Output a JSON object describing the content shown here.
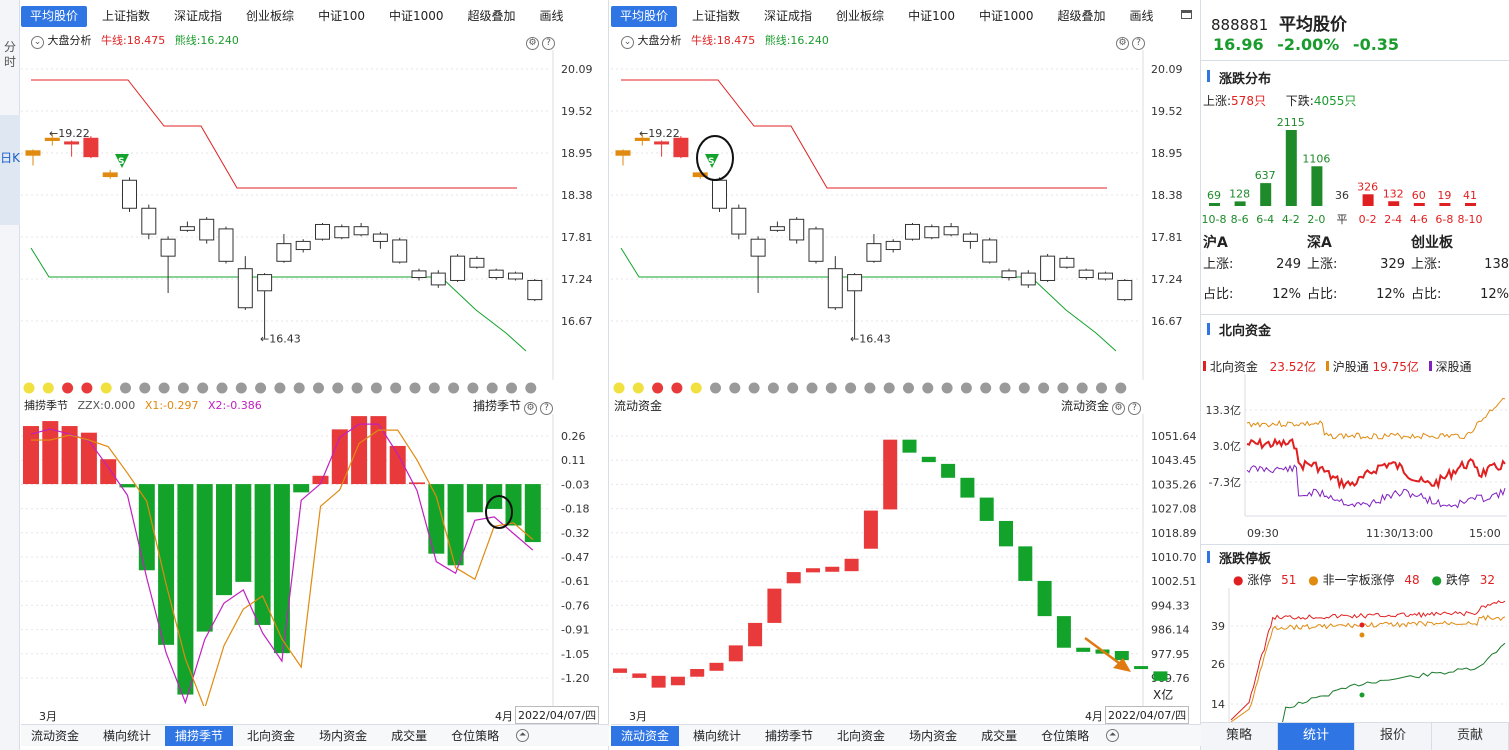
{
  "left_tabs": {
    "fenshi": "分时",
    "rik": "日K"
  },
  "panels": [
    {
      "tabs": [
        "平均股价",
        "上证指数",
        "深证成指",
        "创业板综",
        "中证100",
        "中证1000",
        "超级叠加",
        "画线"
      ],
      "active_tab": 0,
      "analysis": {
        "label": "大盘分析",
        "bull": "牛线:18.475",
        "bear": "熊线:16.240"
      },
      "price_axis": [
        "20.09",
        "19.52",
        "18.95",
        "18.38",
        "17.81",
        "17.24",
        "16.67"
      ],
      "high_label": "19.22",
      "low_label": "16.43",
      "signal": "S",
      "lower": {
        "title": "捕捞季节",
        "zzx": "ZZX:0.000",
        "x1": "X1:-0.297",
        "x2": "X2:-0.386",
        "right_title": "捕捞季节",
        "axis": [
          "0.26",
          "0.11",
          "-0.03",
          "-0.18",
          "-0.32",
          "-0.47",
          "-0.61",
          "-0.76",
          "-0.91",
          "-1.05",
          "-1.20"
        ]
      },
      "date_left": "3月",
      "date_right": "4月",
      "date": "2022/04/07/四",
      "bottom_tabs": [
        "流动资金",
        "横向统计",
        "捕捞季节",
        "北向资金",
        "场内资金",
        "成交量",
        "仓位策略"
      ],
      "bottom_active": 2
    },
    {
      "tabs": [
        "平均股价",
        "上证指数",
        "深证成指",
        "创业板综",
        "中证100",
        "中证1000",
        "超级叠加",
        "画线"
      ],
      "active_tab": 0,
      "analysis": {
        "label": "大盘分析",
        "bull": "牛线:18.475",
        "bear": "熊线:16.240"
      },
      "price_axis": [
        "20.09",
        "19.52",
        "18.95",
        "18.38",
        "17.81",
        "17.24",
        "16.67"
      ],
      "high_label": "19.22",
      "low_label": "16.43",
      "signal": "S",
      "lower": {
        "title": "流动资金",
        "right_title": "流动资金",
        "axis": [
          "1051.64",
          "1043.45",
          "1035.26",
          "1027.08",
          "1018.89",
          "1010.70",
          "1002.51",
          "994.33",
          "986.14",
          "977.95",
          "969.76"
        ],
        "unit": "X亿"
      },
      "date_left": "3月",
      "date_right": "4月",
      "date": "2022/04/07/四",
      "bottom_tabs": [
        "流动资金",
        "横向统计",
        "捕捞季节",
        "北向资金",
        "场内资金",
        "成交量",
        "仓位策略"
      ],
      "bottom_active": 0
    }
  ],
  "candles": [
    {
      "o": 18.92,
      "c": 18.98,
      "h": 19.0,
      "l": 18.78,
      "k": "o"
    },
    {
      "o": 19.12,
      "c": 19.15,
      "h": 19.22,
      "l": 19.05,
      "k": "o"
    },
    {
      "o": 19.1,
      "c": 19.08,
      "h": 19.12,
      "l": 18.9,
      "k": "r"
    },
    {
      "o": 19.15,
      "c": 18.9,
      "h": 19.18,
      "l": 18.88,
      "k": "r"
    },
    {
      "o": 18.68,
      "c": 18.63,
      "h": 18.72,
      "l": 18.6,
      "k": "o"
    },
    {
      "o": 18.2,
      "c": 18.58,
      "h": 18.62,
      "l": 18.15,
      "k": "g"
    },
    {
      "o": 17.85,
      "c": 18.2,
      "h": 18.25,
      "l": 17.78,
      "k": "g"
    },
    {
      "o": 17.55,
      "c": 17.78,
      "h": 17.82,
      "l": 17.05,
      "k": "g"
    },
    {
      "o": 17.9,
      "c": 17.95,
      "h": 18.02,
      "l": 17.88,
      "k": "g"
    },
    {
      "o": 17.77,
      "c": 18.05,
      "h": 18.08,
      "l": 17.72,
      "k": "g"
    },
    {
      "o": 17.48,
      "c": 17.92,
      "h": 17.95,
      "l": 17.45,
      "k": "g"
    },
    {
      "o": 16.85,
      "c": 17.38,
      "h": 17.55,
      "l": 16.82,
      "k": "g"
    },
    {
      "o": 17.08,
      "c": 17.3,
      "h": 17.32,
      "l": 16.43,
      "k": "g"
    },
    {
      "o": 17.48,
      "c": 17.72,
      "h": 17.85,
      "l": 17.46,
      "k": "g"
    },
    {
      "o": 17.64,
      "c": 17.75,
      "h": 17.78,
      "l": 17.6,
      "k": "g"
    },
    {
      "o": 17.78,
      "c": 17.98,
      "h": 18.0,
      "l": 17.76,
      "k": "g"
    },
    {
      "o": 17.8,
      "c": 17.95,
      "h": 17.98,
      "l": 17.78,
      "k": "g"
    },
    {
      "o": 17.84,
      "c": 17.95,
      "h": 18.0,
      "l": 17.82,
      "k": "g"
    },
    {
      "o": 17.75,
      "c": 17.85,
      "h": 17.88,
      "l": 17.65,
      "k": "g"
    },
    {
      "o": 17.47,
      "c": 17.77,
      "h": 17.8,
      "l": 17.45,
      "k": "g"
    },
    {
      "o": 17.26,
      "c": 17.35,
      "h": 17.38,
      "l": 17.22,
      "k": "g"
    },
    {
      "o": 17.16,
      "c": 17.32,
      "h": 17.36,
      "l": 17.12,
      "k": "g"
    },
    {
      "o": 17.22,
      "c": 17.55,
      "h": 17.58,
      "l": 17.2,
      "k": "g"
    },
    {
      "o": 17.4,
      "c": 17.52,
      "h": 17.55,
      "l": 17.38,
      "k": "g"
    },
    {
      "o": 17.26,
      "c": 17.36,
      "h": 17.38,
      "l": 17.23,
      "k": "g"
    },
    {
      "o": 17.24,
      "c": 17.32,
      "h": 17.34,
      "l": 17.22,
      "k": "g"
    },
    {
      "o": 16.96,
      "c": 17.22,
      "h": 17.24,
      "l": 16.94,
      "k": "g"
    }
  ],
  "dots": [
    "y",
    "y",
    "r",
    "r",
    "y",
    "g",
    "g",
    "g",
    "g",
    "g",
    "g",
    "g",
    "g",
    "g",
    "g",
    "g",
    "g",
    "g",
    "g",
    "g",
    "g",
    "g",
    "g",
    "g",
    "g",
    "g",
    "g"
  ],
  "macd_bars": [
    0.32,
    0.35,
    0.32,
    0.28,
    0.12,
    -0.05,
    -0.55,
    -1.0,
    -1.3,
    -0.92,
    -0.7,
    -0.62,
    -0.88,
    -1.05,
    -0.08,
    0.02,
    0.3,
    0.38,
    0.38,
    0.2,
    -0.02,
    -0.45,
    -0.52,
    -0.2,
    -0.18,
    -0.28,
    -0.38
  ],
  "money_bars": [
    {
      "o": 971.5,
      "c": 973.0
    },
    {
      "o": 969.8,
      "c": 971.3
    },
    {
      "o": 966.5,
      "c": 970.5
    },
    {
      "o": 967.3,
      "c": 970.2
    },
    {
      "o": 970.2,
      "c": 972.8
    },
    {
      "o": 972.2,
      "c": 974.9
    },
    {
      "o": 975.4,
      "c": 980.8
    },
    {
      "o": 980.5,
      "c": 988.4
    },
    {
      "o": 988.4,
      "c": 1000.0
    },
    {
      "o": 1001.8,
      "c": 1005.6
    },
    {
      "o": 1005.5,
      "c": 1006.9
    },
    {
      "o": 1005.7,
      "c": 1007.4
    },
    {
      "o": 1005.9,
      "c": 1010.1
    },
    {
      "o": 1013.5,
      "c": 1026.4
    },
    {
      "o": 1026.8,
      "c": 1050.4
    },
    {
      "o": 1050.4,
      "c": 1046.0
    },
    {
      "o": 1044.6,
      "c": 1042.8
    },
    {
      "o": 1042.2,
      "c": 1037.5
    },
    {
      "o": 1037.5,
      "c": 1030.8
    },
    {
      "o": 1030.8,
      "c": 1022.9
    },
    {
      "o": 1022.9,
      "c": 1014.3
    },
    {
      "o": 1014.3,
      "c": 1002.6
    },
    {
      "o": 1002.6,
      "c": 990.7
    },
    {
      "o": 990.7,
      "c": 980.0
    },
    {
      "o": 980.0,
      "c": 978.6
    },
    {
      "o": 979.4,
      "c": 978.0
    },
    {
      "o": 978.9,
      "c": 975.8
    },
    {
      "o": 973.8,
      "c": 973.0
    },
    {
      "o": 972.0,
      "c": 968.8
    }
  ],
  "right": {
    "code": "888881",
    "name": "平均股价",
    "price": "16.96",
    "pct": "-2.00%",
    "chg": "-0.35",
    "dist": {
      "title": "涨跌分布",
      "up_label": "上涨:",
      "up_val": "578只",
      "down_label": "下跌:",
      "down_val": "4055只",
      "bins": [
        {
          "label": "10-8",
          "v": 69,
          "c": "g"
        },
        {
          "label": "8-6",
          "v": 128,
          "c": "g"
        },
        {
          "label": "6-4",
          "v": 637,
          "c": "g"
        },
        {
          "label": "4-2",
          "v": 2115,
          "c": "g"
        },
        {
          "label": "2-0",
          "v": 1106,
          "c": "g"
        },
        {
          "label": "平",
          "v": 36,
          "c": "n"
        },
        {
          "label": "0-2",
          "v": 326,
          "c": "r"
        },
        {
          "label": "2-4",
          "v": 132,
          "c": "r"
        },
        {
          "label": "4-6",
          "v": 60,
          "c": "r"
        },
        {
          "label": "6-8",
          "v": 19,
          "c": "r"
        },
        {
          "label": "8-10",
          "v": 41,
          "c": "r"
        }
      ]
    },
    "markets": [
      {
        "name": "沪A",
        "up_label": "上涨:",
        "up": "249",
        "pct_label": "占比:",
        "pct": "12%"
      },
      {
        "name": "深A",
        "up_label": "上涨:",
        "up": "329",
        "pct_label": "占比:",
        "pct": "12%"
      },
      {
        "name": "创业板",
        "up_label": "上涨:",
        "up": "138",
        "pct_label": "占比:",
        "pct": "12%"
      }
    ],
    "north": {
      "title": "北向资金",
      "l1": "北向资金",
      "v1": "23.52亿",
      "l2": "沪股通",
      "v2": "19.75亿",
      "l3": "深股通",
      "axis": [
        "13.3亿",
        "3.0亿",
        "-7.3亿"
      ],
      "times": [
        "09:30",
        "11:30/13:00",
        "15:00"
      ]
    },
    "limit": {
      "title": "涨跌停板",
      "l1": "涨停",
      "v1": "51",
      "l2": "非一字板涨停",
      "v2": "48",
      "l3": "跌停",
      "v3": "32",
      "axis": [
        "39",
        "26",
        "14"
      ]
    },
    "tabs": [
      "策略",
      "统计",
      "报价",
      "贡献"
    ],
    "active_tab": 1
  },
  "colors": {
    "up": "#e83a3a",
    "down": "#13a32b",
    "orange": "#e08a10",
    "accent": "#2f76e4"
  }
}
